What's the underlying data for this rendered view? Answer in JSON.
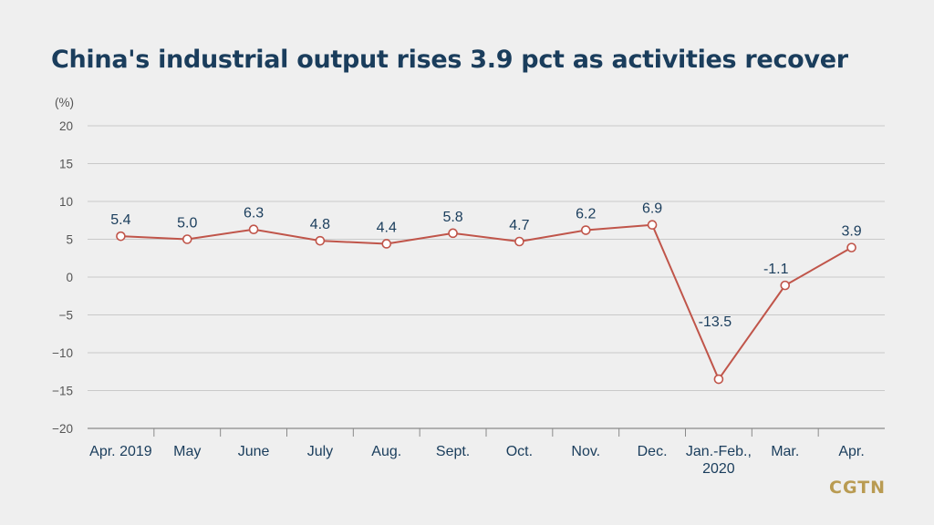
{
  "header": {
    "title": "China's industrial output rises 3.9 pct as activities recover"
  },
  "brand": {
    "logo_text": "CGTN"
  },
  "chart_data": {
    "type": "line",
    "title": "China's industrial output rises 3.9 pct as activities recover",
    "ylabel": "(%)",
    "xlabel": "",
    "ylim": [
      -20,
      20
    ],
    "yticks": [
      20,
      15,
      10,
      5,
      0,
      -5,
      -10,
      -15,
      -20
    ],
    "ytick_labels": [
      "20",
      "15",
      "10",
      "5",
      "0",
      "−5",
      "−10",
      "−15",
      "−20"
    ],
    "categories": [
      "Apr. 2019",
      "May",
      "June",
      "July",
      "Aug.",
      "Sept.",
      "Oct.",
      "Nov.",
      "Dec.",
      "Jan.-Feb., 2020",
      "Mar.",
      "Apr."
    ],
    "category_lines": [
      [
        "Apr. 2019"
      ],
      [
        "May"
      ],
      [
        "June"
      ],
      [
        "July"
      ],
      [
        "Aug."
      ],
      [
        "Sept."
      ],
      [
        "Oct."
      ],
      [
        "Nov."
      ],
      [
        "Dec."
      ],
      [
        "Jan.-Feb.,",
        "2020"
      ],
      [
        "Mar."
      ],
      [
        "Apr."
      ]
    ],
    "values": [
      5.4,
      5.0,
      6.3,
      4.8,
      4.4,
      5.8,
      4.7,
      6.2,
      6.9,
      -13.5,
      -1.1,
      3.9
    ],
    "value_labels": [
      "5.4",
      "5.0",
      "6.3",
      "4.8",
      "4.4",
      "5.8",
      "4.7",
      "6.2",
      "6.9",
      "-13.5",
      "-1.1",
      "3.9"
    ],
    "grid": true,
    "colors": {
      "line": "#c0554a",
      "marker_fill": "#ffffff",
      "grid": "#c9c9c9",
      "axis": "#8a8a8a",
      "text": "#1a3d5c",
      "logo": "#b99b52"
    }
  }
}
